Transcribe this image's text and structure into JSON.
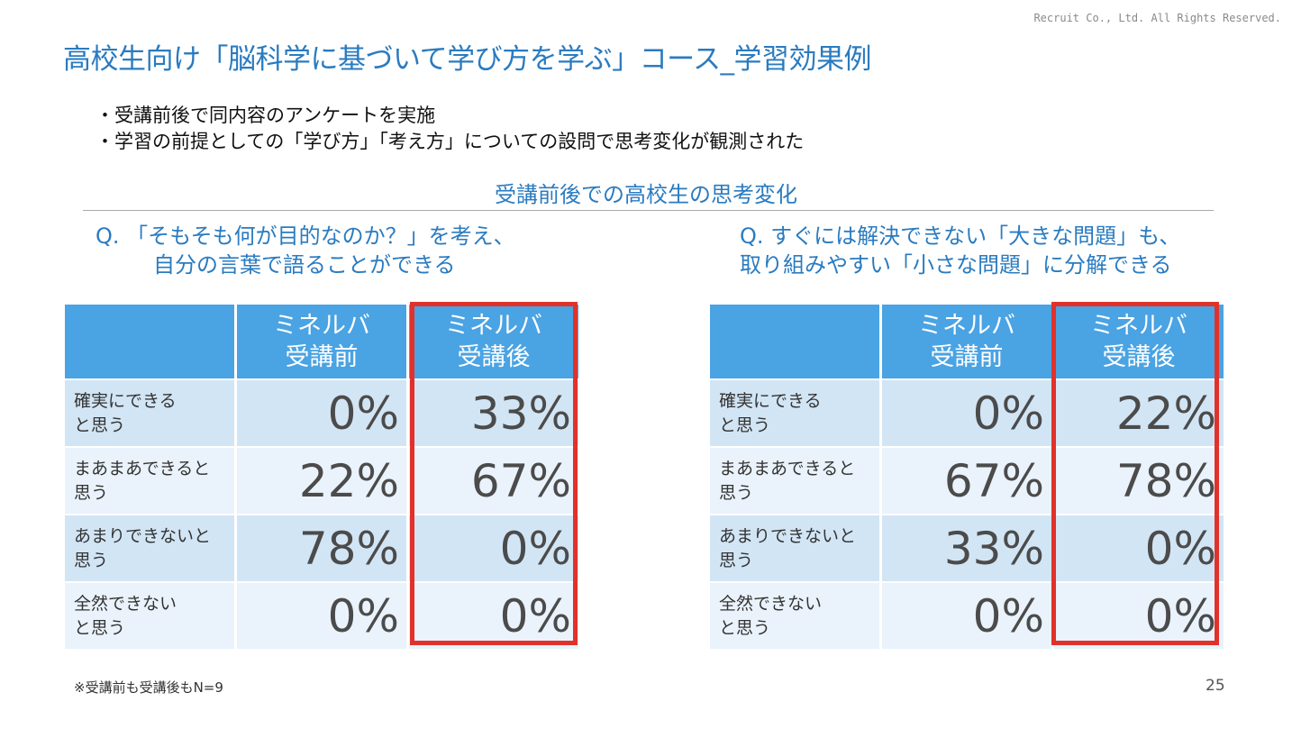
{
  "copyright": "Recruit Co., Ltd. All Rights Reserved.",
  "title": "高校生向け「脳科学に基づいて学び方を学ぶ」コース_学習効果例",
  "bullets": [
    "・受講前後で同内容のアンケートを実施",
    "・学習の前提としての「学び方」「考え方」についての設問で思考変化が観測された"
  ],
  "section_title": "受講前後での高校生の思考変化",
  "tables": [
    {
      "question_line1": "Q. 「そもそも何が目的なのか？」を考え、",
      "question_line2": "自分の言葉で語ることができる",
      "header_before_1": "ミネルバ",
      "header_before_2": "受講前",
      "header_after_1": "ミネルバ",
      "header_after_2": "受講後",
      "rows": [
        {
          "label_1": "確実にできる",
          "label_2": "と思う",
          "before": "0%",
          "after": "33%"
        },
        {
          "label_1": "まあまあできると",
          "label_2": "思う",
          "before": "22%",
          "after": "67%"
        },
        {
          "label_1": "あまりできないと",
          "label_2": "思う",
          "before": "78%",
          "after": "0%"
        },
        {
          "label_1": "全然できない",
          "label_2": "と思う",
          "before": "0%",
          "after": "0%"
        }
      ]
    },
    {
      "question_line1": "Q. すぐには解決できない「大きな問題」も、",
      "question_line2": "取り組みやすい「小さな問題」に分解できる",
      "header_before_1": "ミネルバ",
      "header_before_2": "受講前",
      "header_after_1": "ミネルバ",
      "header_after_2": "受講後",
      "rows": [
        {
          "label_1": "確実にできる",
          "label_2": "と思う",
          "before": "0%",
          "after": "22%"
        },
        {
          "label_1": "まあまあできると",
          "label_2": "思う",
          "before": "67%",
          "after": "78%"
        },
        {
          "label_1": "あまりできないと",
          "label_2": "思う",
          "before": "33%",
          "after": "0%"
        },
        {
          "label_1": "全然できない",
          "label_2": "と思う",
          "before": "0%",
          "after": "0%"
        }
      ]
    }
  ],
  "footnote": "※受講前も受講後もN=9",
  "page_number": "25",
  "colors": {
    "accent": "#2a7bc0",
    "header_bg": "#4aa3e3",
    "row_dark": "#d2e5f5",
    "row_light": "#eaf3fb",
    "highlight_border": "#e0322b"
  }
}
